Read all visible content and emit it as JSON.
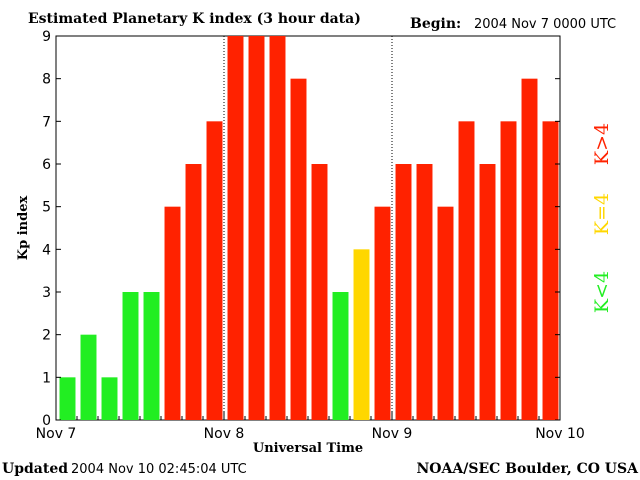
{
  "header": {
    "title": "Estimated Planetary K index (3 hour data)",
    "begin_label": "Begin:",
    "begin_value": "2004 Nov 7 0000 UTC"
  },
  "footer": {
    "updated_label": "Updated",
    "updated_value": "2004 Nov 10 02:45:04 UTC",
    "source": "NOAA/SEC Boulder, CO USA"
  },
  "legend": {
    "below": "K<4",
    "equal": "K=4",
    "above": "K>4"
  },
  "colors": {
    "below": "#22ee22",
    "equal": "#ffd700",
    "above": "#ff2200",
    "axis": "#000000",
    "background": "#ffffff"
  },
  "chart_data": {
    "type": "bar",
    "title": "Estimated Planetary K index (3 hour data)",
    "xlabel": "Universal Time",
    "ylabel": "Kp index",
    "ylim": [
      0,
      9
    ],
    "yticks": [
      "0",
      "1",
      "2",
      "3",
      "4",
      "5",
      "6",
      "7",
      "8",
      "9"
    ],
    "xticks": [
      "Nov 7",
      "Nov 8",
      "Nov 9",
      "Nov 10"
    ],
    "interval_hours": 3,
    "values": [
      1,
      2,
      1,
      3,
      3,
      5,
      6,
      7,
      9,
      9,
      9,
      8,
      6,
      3,
      4,
      5,
      6,
      6,
      5,
      7,
      6,
      7,
      8,
      7
    ],
    "grid": "dotted vertical lines at day boundaries"
  }
}
